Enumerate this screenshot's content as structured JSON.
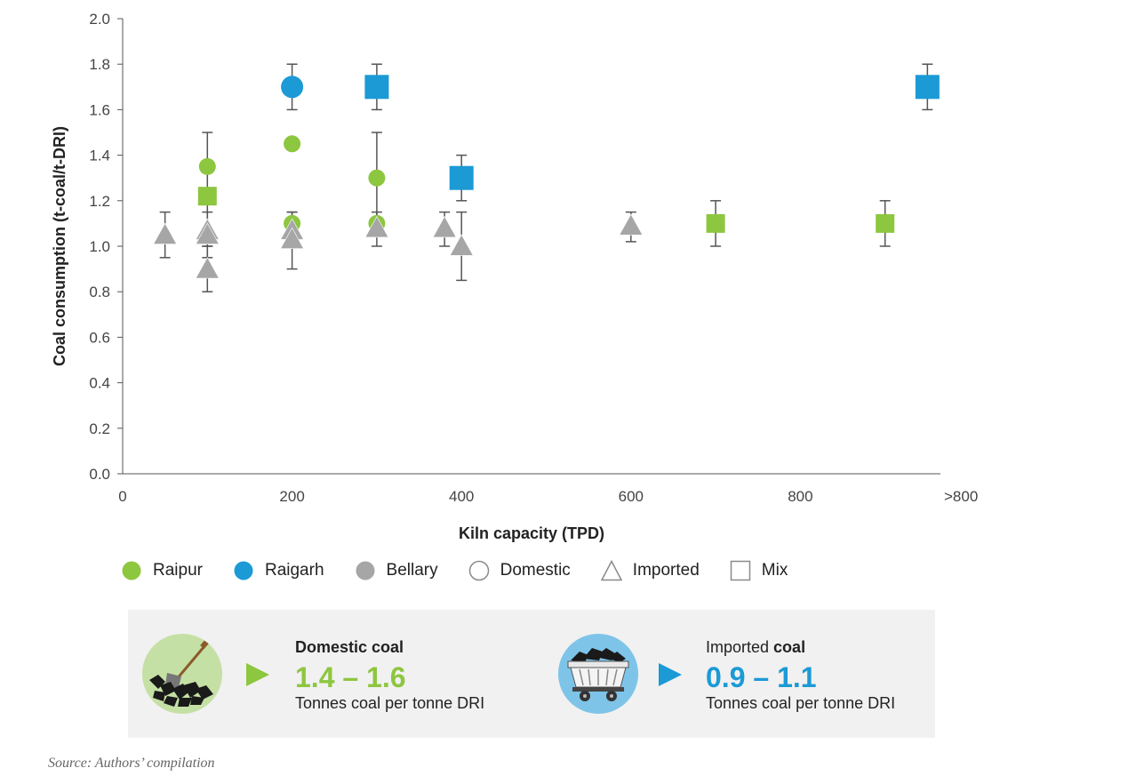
{
  "chart_data": {
    "type": "scatter",
    "xlabel": "Kiln capacity (TPD)",
    "ylabel": "Coal consumption (t-coal/t-DRI)",
    "xlim": [
      0,
      960
    ],
    "ylim": [
      0,
      2.0
    ],
    "x_ticks": [
      {
        "value": 0,
        "label": "0"
      },
      {
        "value": 200,
        "label": "200"
      },
      {
        "value": 400,
        "label": "400"
      },
      {
        "value": 600,
        "label": "600"
      },
      {
        "value": 800,
        "label": "800"
      },
      {
        "value": 980,
        "label": ">800"
      }
    ],
    "y_ticks": [
      "0.0",
      "0.2",
      "0.4",
      "0.6",
      "0.8",
      "1.0",
      "1.2",
      "1.4",
      "1.6",
      "1.8",
      "2.0"
    ],
    "grid": false,
    "colors": {
      "Raipur": "#8dc63f",
      "Raigarh": "#1b9ad6",
      "Bellary": "#a6a6a6"
    },
    "series": [
      {
        "name": "Raipur",
        "color": "#8dc63f",
        "points": [
          {
            "x": 100,
            "y": 1.35,
            "shape": "circle"
          },
          {
            "x": 100,
            "y": 1.22,
            "shape": "square"
          },
          {
            "x": 200,
            "y": 1.45,
            "shape": "circle"
          },
          {
            "x": 200,
            "y": 1.1,
            "shape": "circle"
          },
          {
            "x": 300,
            "y": 1.3,
            "shape": "circle",
            "err_low": 1.1,
            "err_high": 1.5
          },
          {
            "x": 300,
            "y": 1.1,
            "shape": "circle"
          },
          {
            "x": 700,
            "y": 1.1,
            "shape": "square",
            "err_low": 1.0,
            "err_high": 1.2
          },
          {
            "x": 900,
            "y": 1.1,
            "shape": "square",
            "err_low": 1.0,
            "err_high": 1.2
          }
        ]
      },
      {
        "name": "Raigarh",
        "color": "#1b9ad6",
        "points": [
          {
            "x": 200,
            "y": 1.7,
            "shape": "circle",
            "err_low": 1.6,
            "err_high": 1.8
          },
          {
            "x": 300,
            "y": 1.7,
            "shape": "square",
            "err_low": 1.6,
            "err_high": 1.8
          },
          {
            "x": 400,
            "y": 1.3,
            "shape": "square",
            "err_low": 1.2,
            "err_high": 1.4
          },
          {
            "x": 950,
            "y": 1.7,
            "shape": "square",
            "err_low": 1.6,
            "err_high": 1.8
          }
        ]
      },
      {
        "name": "Bellary",
        "color": "#a6a6a6",
        "points": [
          {
            "x": 50,
            "y": 1.05,
            "shape": "triangle",
            "err_low": 0.95,
            "err_high": 1.15
          },
          {
            "x": 100,
            "y": 1.07,
            "shape": "triangle",
            "err_low": 1.0,
            "err_high": 1.5
          },
          {
            "x": 100,
            "y": 1.05,
            "shape": "triangle",
            "err_low": 0.95,
            "err_high": 1.15
          },
          {
            "x": 100,
            "y": 0.9,
            "shape": "triangle",
            "err_low": 0.8,
            "err_high": 1.0
          },
          {
            "x": 200,
            "y": 1.07,
            "shape": "triangle",
            "err_low": 1.0,
            "err_high": 1.15
          },
          {
            "x": 200,
            "y": 1.03,
            "shape": "triangle",
            "err_low": 0.9,
            "err_high": 1.15
          },
          {
            "x": 300,
            "y": 1.08,
            "shape": "triangle",
            "err_low": 1.0,
            "err_high": 1.15
          },
          {
            "x": 380,
            "y": 1.08,
            "shape": "triangle",
            "err_low": 1.0,
            "err_high": 1.15
          },
          {
            "x": 400,
            "y": 1.0,
            "shape": "triangle",
            "err_low": 0.85,
            "err_high": 1.15
          },
          {
            "x": 600,
            "y": 1.09,
            "shape": "triangle",
            "err_low": 1.02,
            "err_high": 1.15
          }
        ]
      }
    ]
  },
  "legend": {
    "items": [
      {
        "label": "Raipur",
        "shape": "circle",
        "color": "#8dc63f",
        "filled": true
      },
      {
        "label": "Raigarh",
        "shape": "circle",
        "color": "#1b9ad6",
        "filled": true
      },
      {
        "label": "Bellary",
        "shape": "circle",
        "color": "#a6a6a6",
        "filled": true
      },
      {
        "label": "Domestic",
        "shape": "circle",
        "color": "#8a8a8a",
        "filled": false
      },
      {
        "label": "Imported",
        "shape": "triangle",
        "color": "#8a8a8a",
        "filled": false
      },
      {
        "label": "Mix",
        "shape": "square",
        "color": "#8a8a8a",
        "filled": false
      }
    ]
  },
  "info": {
    "domestic": {
      "heading_bold": "Domestic coal",
      "range": "1.4 – 1.6",
      "unit": "Tonnes coal per tonne DRI",
      "color": "#8dc63f",
      "icon": "coal-shovel-icon"
    },
    "imported": {
      "heading_prefix": "Imported ",
      "heading_bold": "coal",
      "range": "0.9 – 1.1",
      "unit": "Tonnes coal per tonne DRI",
      "color": "#1b9ad6",
      "icon": "coal-wagon-icon"
    }
  },
  "source": "Source: Authors’ compilation"
}
